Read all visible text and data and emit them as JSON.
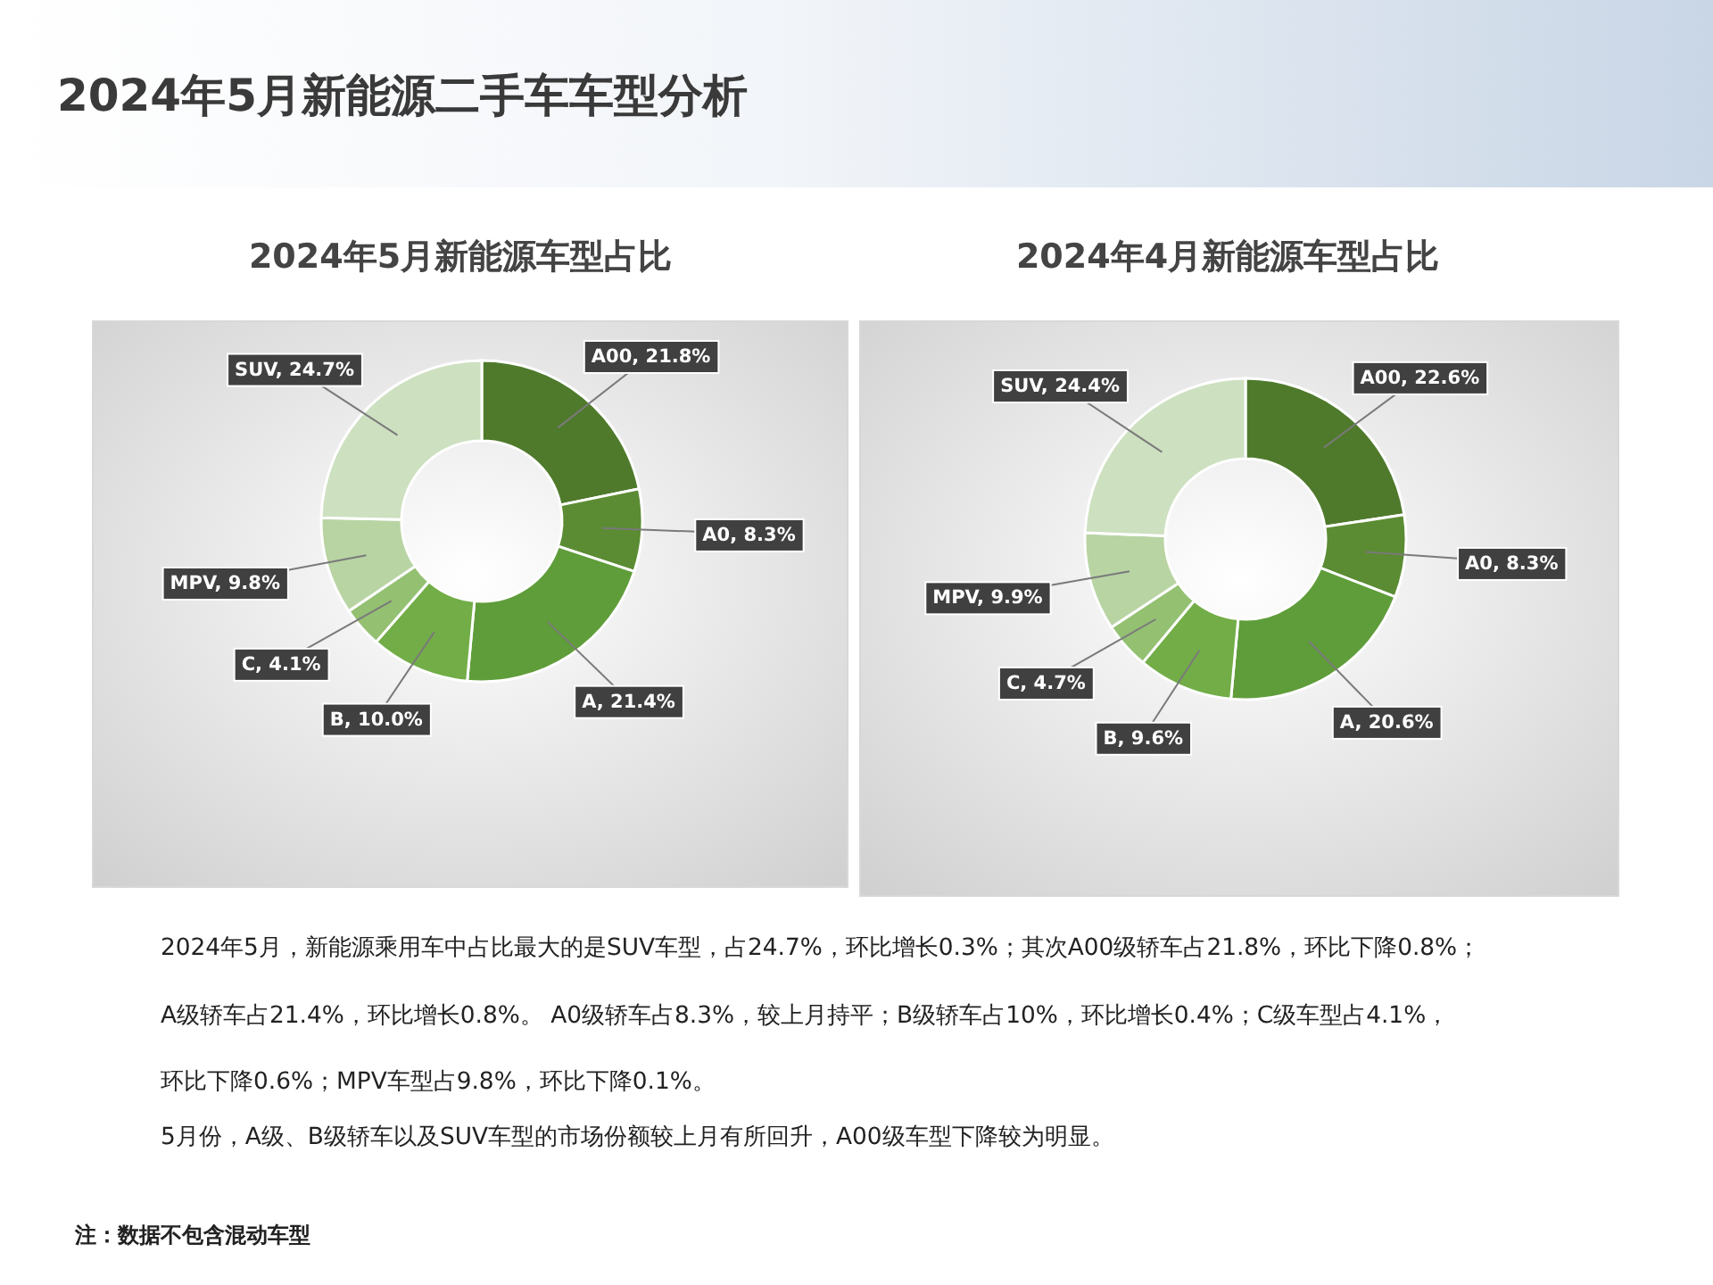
{
  "chart_data": [
    {
      "type": "donut",
      "title": "2024年5月新能源车型占比",
      "categories": [
        null,
        null,
        null,
        null,
        null,
        null,
        null
      ],
      "values": [
        21.8,
        8.3,
        21.4,
        10.0,
        4.1,
        9.8,
        24.7
      ],
      "value_labels": [
        "A00, 21.8%",
        "A0, 8.3%",
        "A, 21.4%",
        "B, 10.0%",
        "C, 4.1%",
        "MPV, 9.8%",
        "SUV, 24.7%"
      ],
      "colors": [
        "#4f7a2c",
        "#5b8c33",
        "#5f9d3a",
        "#72ad47",
        "#94c072",
        "#b8d4a3",
        "#cde0c0"
      ],
      "annotations": [
        "2024年5月新能源二手车车型分析",
        "2024年5月，新能源乘用车中占比最大的是SUV车型，占24.7%，环比增长0.3%；其次A00级轿车占21.8%，环比下降0.8%；",
        "A级轿车占21.4%，环比增长0.8%。 A0级轿车占8.3%，较上月持平；B级轿车占10%，环比增长0.4%；C级车型占4.1%，",
        "环比下降0.6%；MPV车型占9.8%，环比下降0.1%。",
        "5月份，A级、B级轿车以及SUV车型的市场份额较上月有所回升，A00级车型下降较为明显。",
        "注：数据不包含混动车型"
      ]
    },
    {
      "type": "donut",
      "title": "2024年4月新能源车型占比",
      "categories": [
        null,
        null,
        null,
        null,
        null,
        null,
        null
      ],
      "values": [
        22.6,
        8.3,
        20.6,
        9.6,
        4.7,
        9.9,
        24.4
      ],
      "value_labels": [
        "A00, 22.6%",
        "A0, 8.3%",
        "A, 20.6%",
        "B, 9.6%",
        "C, 4.7%",
        "MPV, 9.9%",
        "SUV, 24.4%"
      ],
      "colors": [
        "#4f7a2c",
        "#5b8c33",
        "#5f9d3a",
        "#72ad47",
        "#94c072",
        "#b8d4a3",
        "#cde0c0"
      ]
    }
  ]
}
